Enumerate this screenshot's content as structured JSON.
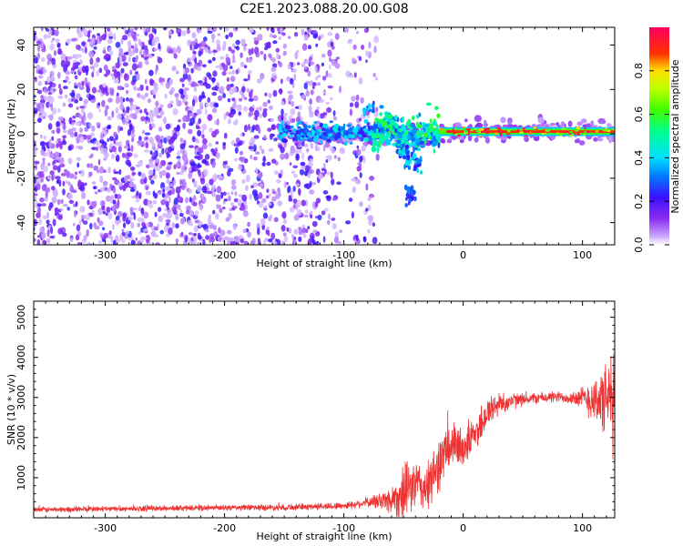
{
  "figure_title": "C2E1.2023.088.20.00.G08",
  "chart_data": [
    {
      "type": "heatmap",
      "xlabel": "Height of straight line (km)",
      "ylabel": "Frequency (Hz)",
      "xlim": [
        -360,
        127
      ],
      "ylim": [
        -50,
        48
      ],
      "xticks": [
        -300,
        -200,
        -100,
        0,
        100
      ],
      "yticks": [
        -40,
        -20,
        0,
        20,
        40
      ],
      "colorbar": {
        "label": "Normalized spectral amplitude",
        "range": [
          0,
          1
        ],
        "ticks": [
          0.0,
          0.2,
          0.4,
          0.6,
          0.8
        ],
        "colormap": "rainbow (white-purple-blue-cyan-green-yellow-red-magenta)"
      },
      "regions": [
        {
          "x_range": [
            -360,
            -75
          ],
          "freq_range": [
            -50,
            48
          ],
          "amplitude": "0.05-0.3",
          "description": "scattered low-amplitude noise"
        },
        {
          "x_range": [
            -155,
            -65
          ],
          "freq_center": 0,
          "amplitude": "0.2-0.5"
        },
        {
          "x_range": [
            -75,
            -20
          ],
          "freq_center": 0,
          "amplitude": "0.3-0.6"
        },
        {
          "x_range": [
            -50,
            -35
          ],
          "freq_center": -27,
          "amplitude": "0.1-0.3",
          "description": "branch toward -30 Hz"
        },
        {
          "x_range": [
            -20,
            127
          ],
          "freq_center": 1,
          "amplitude": "0.8-1.0",
          "description": "narrow band near 0 Hz"
        }
      ]
    },
    {
      "type": "line",
      "xlabel": "Height of straight line (km)",
      "ylabel": "SNR (10 * v/v)",
      "xlim": [
        -360,
        127
      ],
      "ylim": [
        0,
        5400
      ],
      "xticks": [
        -300,
        -200,
        -100,
        0,
        100
      ],
      "yticks": [
        1000,
        2000,
        3000,
        4000,
        5000
      ],
      "series": [
        {
          "color": "#ee3333",
          "x": [
            -360,
            -300,
            -200,
            -150,
            -100,
            -80,
            -60,
            -50,
            -40,
            -30,
            -20,
            -10,
            0,
            10,
            20,
            30,
            40,
            50,
            60,
            70,
            80,
            90,
            100,
            110,
            120,
            127
          ],
          "y_center": [
            200,
            220,
            250,
            260,
            300,
            380,
            450,
            600,
            850,
            700,
            1400,
            1800,
            1750,
            2100,
            2600,
            2850,
            2900,
            2950,
            2980,
            3000,
            3010,
            3000,
            2980,
            2950,
            2900,
            3000
          ],
          "y_spread": [
            70,
            70,
            70,
            80,
            90,
            110,
            350,
            700,
            600,
            600,
            700,
            600,
            500,
            450,
            450,
            280,
            220,
            150,
            140,
            140,
            140,
            160,
            280,
            600,
            900,
            1500
          ]
        }
      ]
    }
  ]
}
